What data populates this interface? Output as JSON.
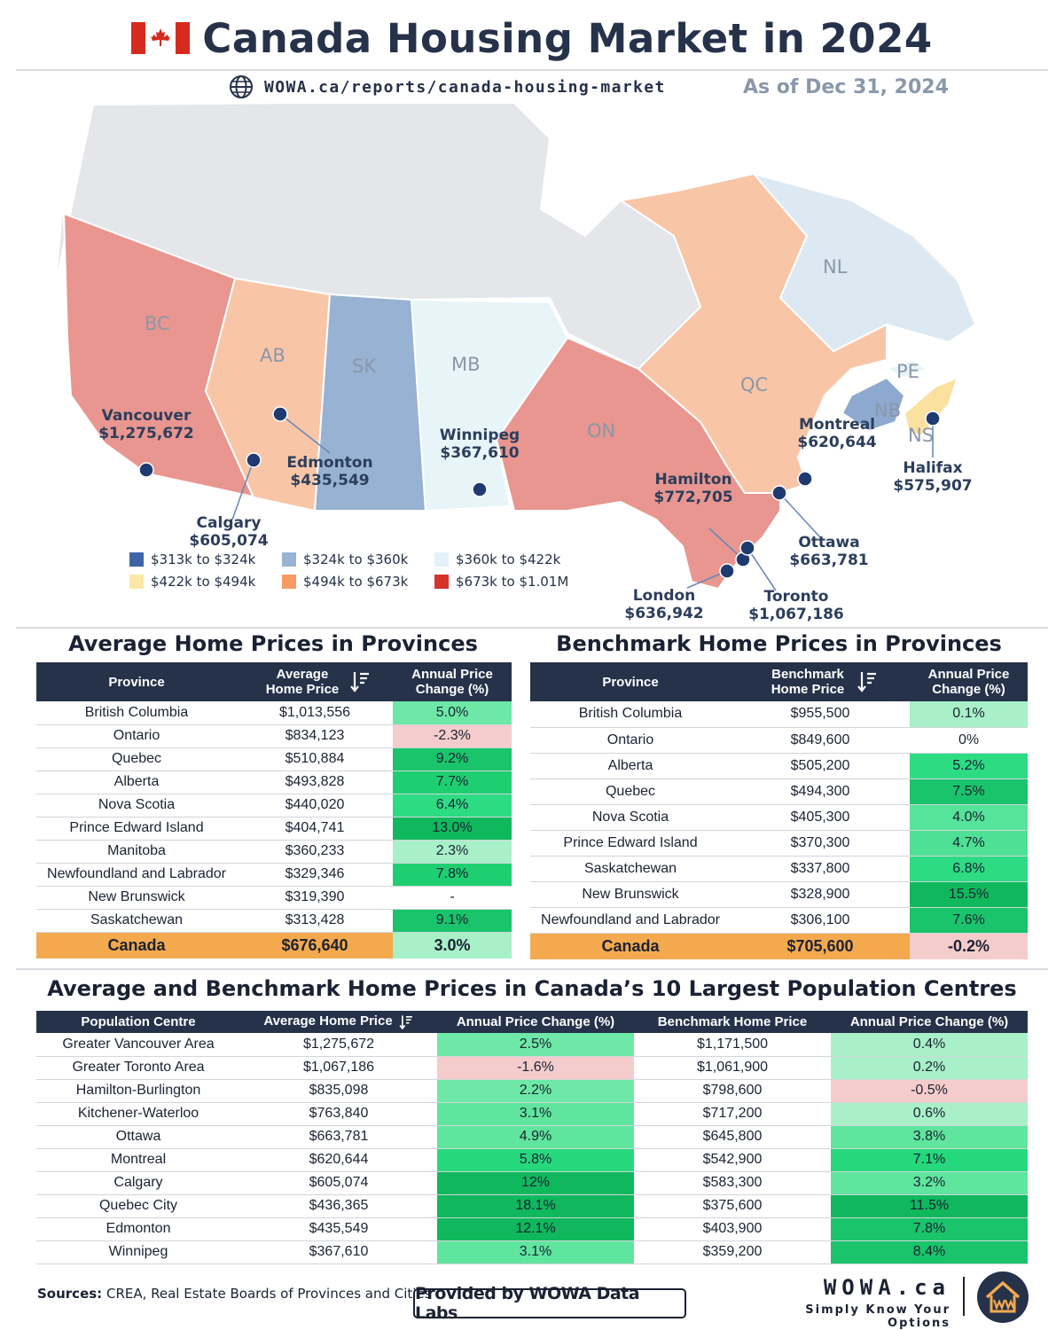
{
  "header": {
    "title": "Canada Housing Market in 2024",
    "url": "WOWA.ca/reports/canada-housing-market",
    "as_of": "As of Dec 31, 2024"
  },
  "colors": {
    "dark_blue": "#3d65a8",
    "light_blue": "#97b2d2",
    "pale_blue": "#e7f4f8",
    "yellow": "#fde7a6",
    "orange": "#f8c6a7",
    "red": "#e8968f",
    "territories": "#e4e6ea",
    "nl": "#dce9f2",
    "nb": "#8ea9d0",
    "ns": "#fbe1a0",
    "header_bg": "#25324a",
    "total_row": "#f5a94e"
  },
  "map": {
    "provinces": [
      {
        "code": "BC"
      },
      {
        "code": "AB"
      },
      {
        "code": "SK"
      },
      {
        "code": "MB"
      },
      {
        "code": "ON"
      },
      {
        "code": "QC"
      },
      {
        "code": "NL"
      },
      {
        "code": "NB"
      },
      {
        "code": "PE"
      },
      {
        "code": "NS"
      }
    ],
    "cities": [
      {
        "name": "Vancouver",
        "price": "$1,275,672"
      },
      {
        "name": "Calgary",
        "price": "$605,074"
      },
      {
        "name": "Edmonton",
        "price": "$435,549"
      },
      {
        "name": "Winnipeg",
        "price": "$367,610"
      },
      {
        "name": "Hamilton",
        "price": "$772,705"
      },
      {
        "name": "Montreal",
        "price": "$620,644"
      },
      {
        "name": "Halifax",
        "price": "$575,907"
      },
      {
        "name": "Ottawa",
        "price": "$663,781"
      },
      {
        "name": "London",
        "price": "$636,942"
      },
      {
        "name": "Toronto",
        "price": "$1,067,186"
      }
    ],
    "legend": [
      {
        "label": "$313k to $324k",
        "color": "#3d65a8"
      },
      {
        "label": "$324k to $360k",
        "color": "#97b2d2"
      },
      {
        "label": "$360k to $422k",
        "color": "#e2f2f8"
      },
      {
        "label": "$422k to $494k",
        "color": "#fde7a6"
      },
      {
        "label": "$494k to $673k",
        "color": "#f89a62"
      },
      {
        "label": "$673k to $1.01M",
        "color": "#d6332c"
      }
    ]
  },
  "avg_table": {
    "title": "Average Home Prices in Provinces",
    "headers": [
      "Province",
      "Average Home Price",
      "Annual Price Change (%)"
    ],
    "rows": [
      {
        "province": "British Columbia",
        "price": "$1,013,556",
        "change": "5.0%",
        "bg": "#6ee8a6"
      },
      {
        "province": "Ontario",
        "price": "$834,123",
        "change": "-2.3%",
        "bg": "#f4cccc"
      },
      {
        "province": "Quebec",
        "price": "$510,884",
        "change": "9.2%",
        "bg": "#19c46a"
      },
      {
        "province": "Alberta",
        "price": "$493,828",
        "change": "7.7%",
        "bg": "#1ecf72"
      },
      {
        "province": "Nova Scotia",
        "price": "$440,020",
        "change": "6.4%",
        "bg": "#2ddb83"
      },
      {
        "province": "Prince Edward Island",
        "price": "$404,741",
        "change": "13.0%",
        "bg": "#0fb85c"
      },
      {
        "province": "Manitoba",
        "price": "$360,233",
        "change": "2.3%",
        "bg": "#a8f0c8"
      },
      {
        "province": "Newfoundland and Labrador",
        "price": "$329,346",
        "change": "7.8%",
        "bg": "#1ecf72"
      },
      {
        "province": "New Brunswick",
        "price": "$319,390",
        "change": "-",
        "bg": "#ffffff"
      },
      {
        "province": "Saskatchewan",
        "price": "$313,428",
        "change": "9.1%",
        "bg": "#19c46a"
      }
    ],
    "total": {
      "province": "Canada",
      "price": "$676,640",
      "change": "3.0%",
      "bg": "#a8f0c8"
    }
  },
  "bench_table": {
    "title": "Benchmark Home Prices in Provinces",
    "headers": [
      "Province",
      "Benchmark Home Price",
      "Annual Price Change (%)"
    ],
    "rows": [
      {
        "province": "British Columbia",
        "price": "$955,500",
        "change": "0.1%",
        "bg": "#a8f0c8"
      },
      {
        "province": "Ontario",
        "price": "$849,600",
        "change": "0%",
        "bg": "#ffffff"
      },
      {
        "province": "Alberta",
        "price": "$505,200",
        "change": "5.2%",
        "bg": "#2ddb83"
      },
      {
        "province": "Quebec",
        "price": "$494,300",
        "change": "7.5%",
        "bg": "#19c46a"
      },
      {
        "province": "Nova Scotia",
        "price": "$405,300",
        "change": "4.0%",
        "bg": "#56e39a"
      },
      {
        "province": "Prince Edward Island",
        "price": "$370,300",
        "change": "4.7%",
        "bg": "#4ee095"
      },
      {
        "province": "Saskatchewan",
        "price": "$337,800",
        "change": "6.8%",
        "bg": "#2ddb83"
      },
      {
        "province": "New Brunswick",
        "price": "$328,900",
        "change": "15.5%",
        "bg": "#0fb85c"
      },
      {
        "province": "Newfoundland and Labrador",
        "price": "$306,100",
        "change": "7.6%",
        "bg": "#19c46a"
      }
    ],
    "total": {
      "province": "Canada",
      "price": "$705,600",
      "change": "-0.2%",
      "bg": "#f4cccc"
    }
  },
  "centres_table": {
    "title": "Average and Benchmark Home Prices in  Canada’s 10 Largest Population Centres",
    "headers": [
      "Population Centre",
      "Average Home Price",
      "Annual Price Change (%)",
      "Benchmark Home Price",
      "Annual Price Change (%)"
    ],
    "rows": [
      {
        "centre": "Greater Vancouver Area",
        "avg": "$1,275,672",
        "avg_change": "2.5%",
        "avg_bg": "#6ee8a6",
        "bench": "$1,171,500",
        "bench_change": "0.4%",
        "bench_bg": "#a8f0c8"
      },
      {
        "centre": "Greater Toronto Area",
        "avg": "$1,067,186",
        "avg_change": "-1.6%",
        "avg_bg": "#f4cccc",
        "bench": "$1,061,900",
        "bench_change": "0.2%",
        "bench_bg": "#a8f0c8"
      },
      {
        "centre": "Hamilton-Burlington",
        "avg": "$835,098",
        "avg_change": "2.2%",
        "avg_bg": "#6ee8a6",
        "bench": "$798,600",
        "bench_change": "-0.5%",
        "bench_bg": "#f4cccc"
      },
      {
        "centre": "Kitchener-Waterloo",
        "avg": "$763,840",
        "avg_change": "3.1%",
        "avg_bg": "#5fe59e",
        "bench": "$717,200",
        "bench_change": "0.6%",
        "bench_bg": "#a8f0c8"
      },
      {
        "centre": "Ottawa",
        "avg": "$663,781",
        "avg_change": "4.9%",
        "avg_bg": "#5fe59e",
        "bench": "$645,800",
        "bench_change": "3.8%",
        "bench_bg": "#5fe59e"
      },
      {
        "centre": "Montreal",
        "avg": "$620,644",
        "avg_change": "5.8%",
        "avg_bg": "#25d87c",
        "bench": "$542,900",
        "bench_change": "7.1%",
        "bench_bg": "#25d87c"
      },
      {
        "centre": "Calgary",
        "avg": "$605,074",
        "avg_change": "12%",
        "avg_bg": "#0fb85c",
        "bench": "$583,300",
        "bench_change": "3.2%",
        "bench_bg": "#5fe59e"
      },
      {
        "centre": "Quebec City",
        "avg": "$436,365",
        "avg_change": "18.1%",
        "avg_bg": "#0fb85c",
        "bench": "$375,600",
        "bench_change": "11.5%",
        "bench_bg": "#0fb85c"
      },
      {
        "centre": "Edmonton",
        "avg": "$435,549",
        "avg_change": "12.1%",
        "avg_bg": "#0fb85c",
        "bench": "$403,900",
        "bench_change": "7.8%",
        "bench_bg": "#19c46a"
      },
      {
        "centre": "Winnipeg",
        "avg": "$367,610",
        "avg_change": "3.1%",
        "avg_bg": "#5fe59e",
        "bench": "$359,200",
        "bench_change": "8.4%",
        "bench_bg": "#19c46a"
      }
    ]
  },
  "footer": {
    "sources_label": "Sources:",
    "sources_text": "CREA, Real Estate Boards of Provinces and Cities",
    "provided": "Provided by WOWA Data Labs",
    "brand": "WOWA.ca",
    "tagline": "Simply Know Your Options"
  }
}
